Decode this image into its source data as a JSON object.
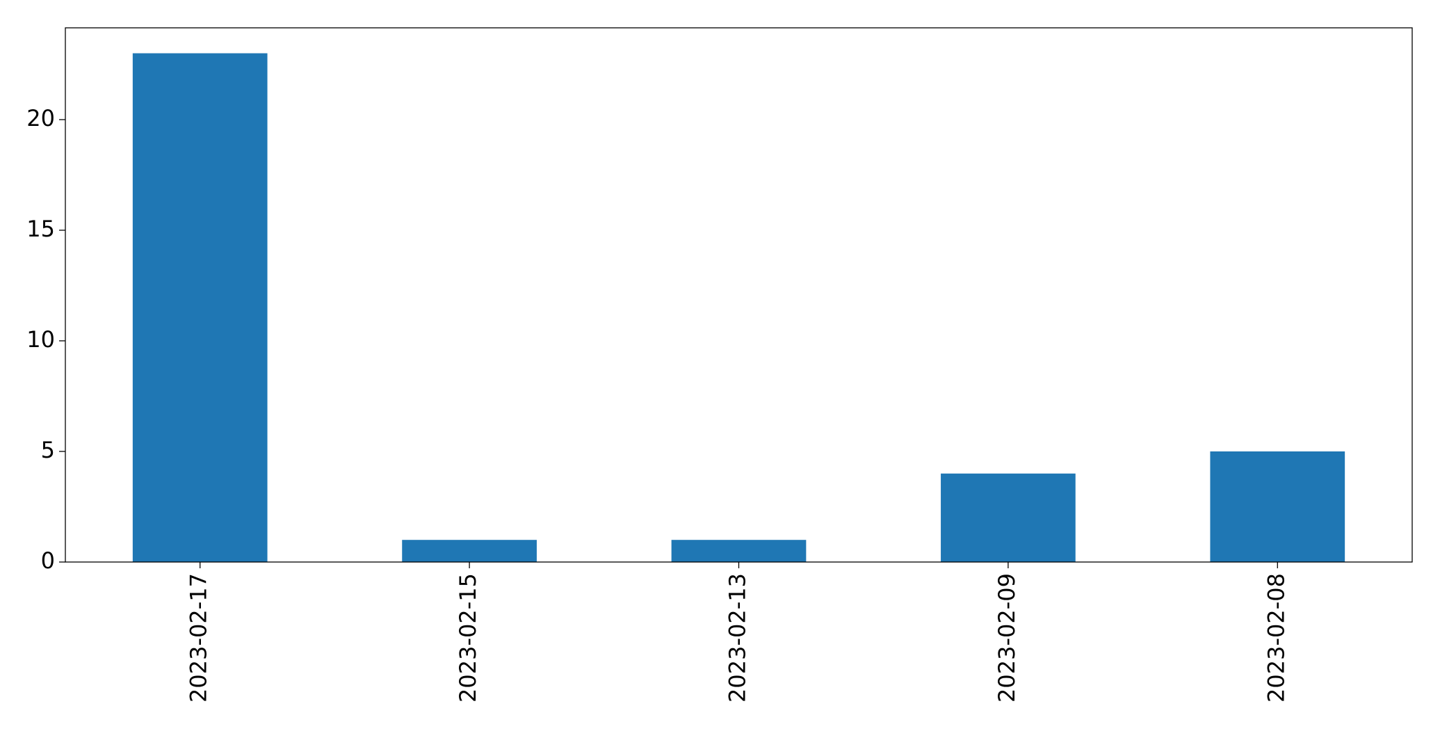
{
  "chart_data": {
    "type": "bar",
    "categories": [
      "2023-02-17",
      "2023-02-15",
      "2023-02-13",
      "2023-02-09",
      "2023-02-08"
    ],
    "values": [
      23,
      1,
      1,
      4,
      5
    ],
    "color": "#1f77b4",
    "ylim": [
      0,
      24.15
    ],
    "yticks": [
      0,
      5,
      10,
      15,
      20
    ],
    "grid": false
  }
}
